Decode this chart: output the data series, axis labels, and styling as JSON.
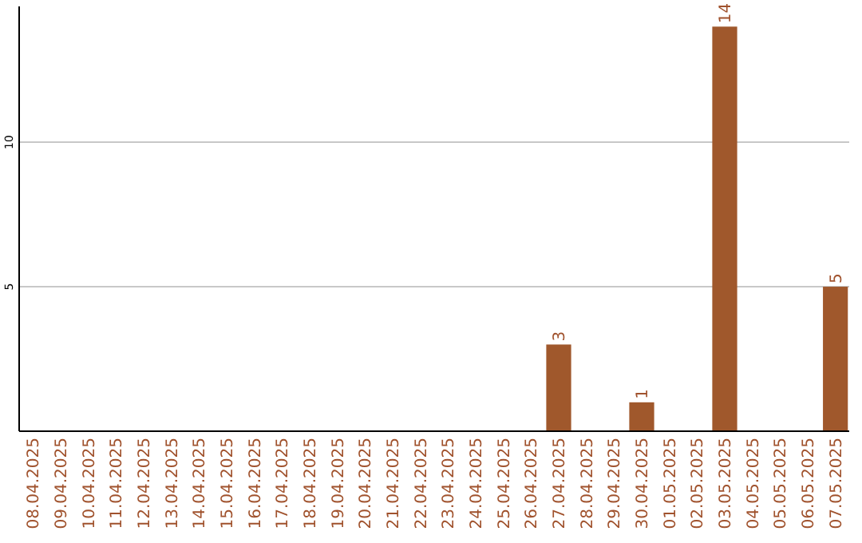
{
  "chart_data": {
    "type": "bar",
    "categories": [
      "08.04.2025",
      "09.04.2025",
      "10.04.2025",
      "11.04.2025",
      "12.04.2025",
      "13.04.2025",
      "14.04.2025",
      "15.04.2025",
      "16.04.2025",
      "17.04.2025",
      "18.04.2025",
      "19.04.2025",
      "20.04.2025",
      "21.04.2025",
      "22.04.2025",
      "23.04.2025",
      "24.04.2025",
      "25.04.2025",
      "26.04.2025",
      "27.04.2025",
      "28.04.2025",
      "29.04.2025",
      "30.04.2025",
      "01.05.2025",
      "02.05.2025",
      "03.05.2025",
      "04.05.2025",
      "05.05.2025",
      "06.05.2025",
      "07.05.2025"
    ],
    "values": [
      0,
      0,
      0,
      0,
      0,
      0,
      0,
      0,
      0,
      0,
      0,
      0,
      0,
      0,
      0,
      0,
      0,
      0,
      0,
      3,
      0,
      0,
      1,
      0,
      0,
      14,
      0,
      0,
      0,
      5
    ],
    "value_labels": [
      null,
      null,
      null,
      null,
      null,
      null,
      null,
      null,
      null,
      null,
      null,
      null,
      null,
      null,
      null,
      null,
      null,
      null,
      null,
      "3",
      null,
      null,
      "1",
      null,
      null,
      "14",
      null,
      null,
      null,
      "5"
    ],
    "color": "#a0582c",
    "ylim": [
      0,
      14.7
    ],
    "yticks": [
      5,
      10
    ],
    "grid": "y"
  }
}
